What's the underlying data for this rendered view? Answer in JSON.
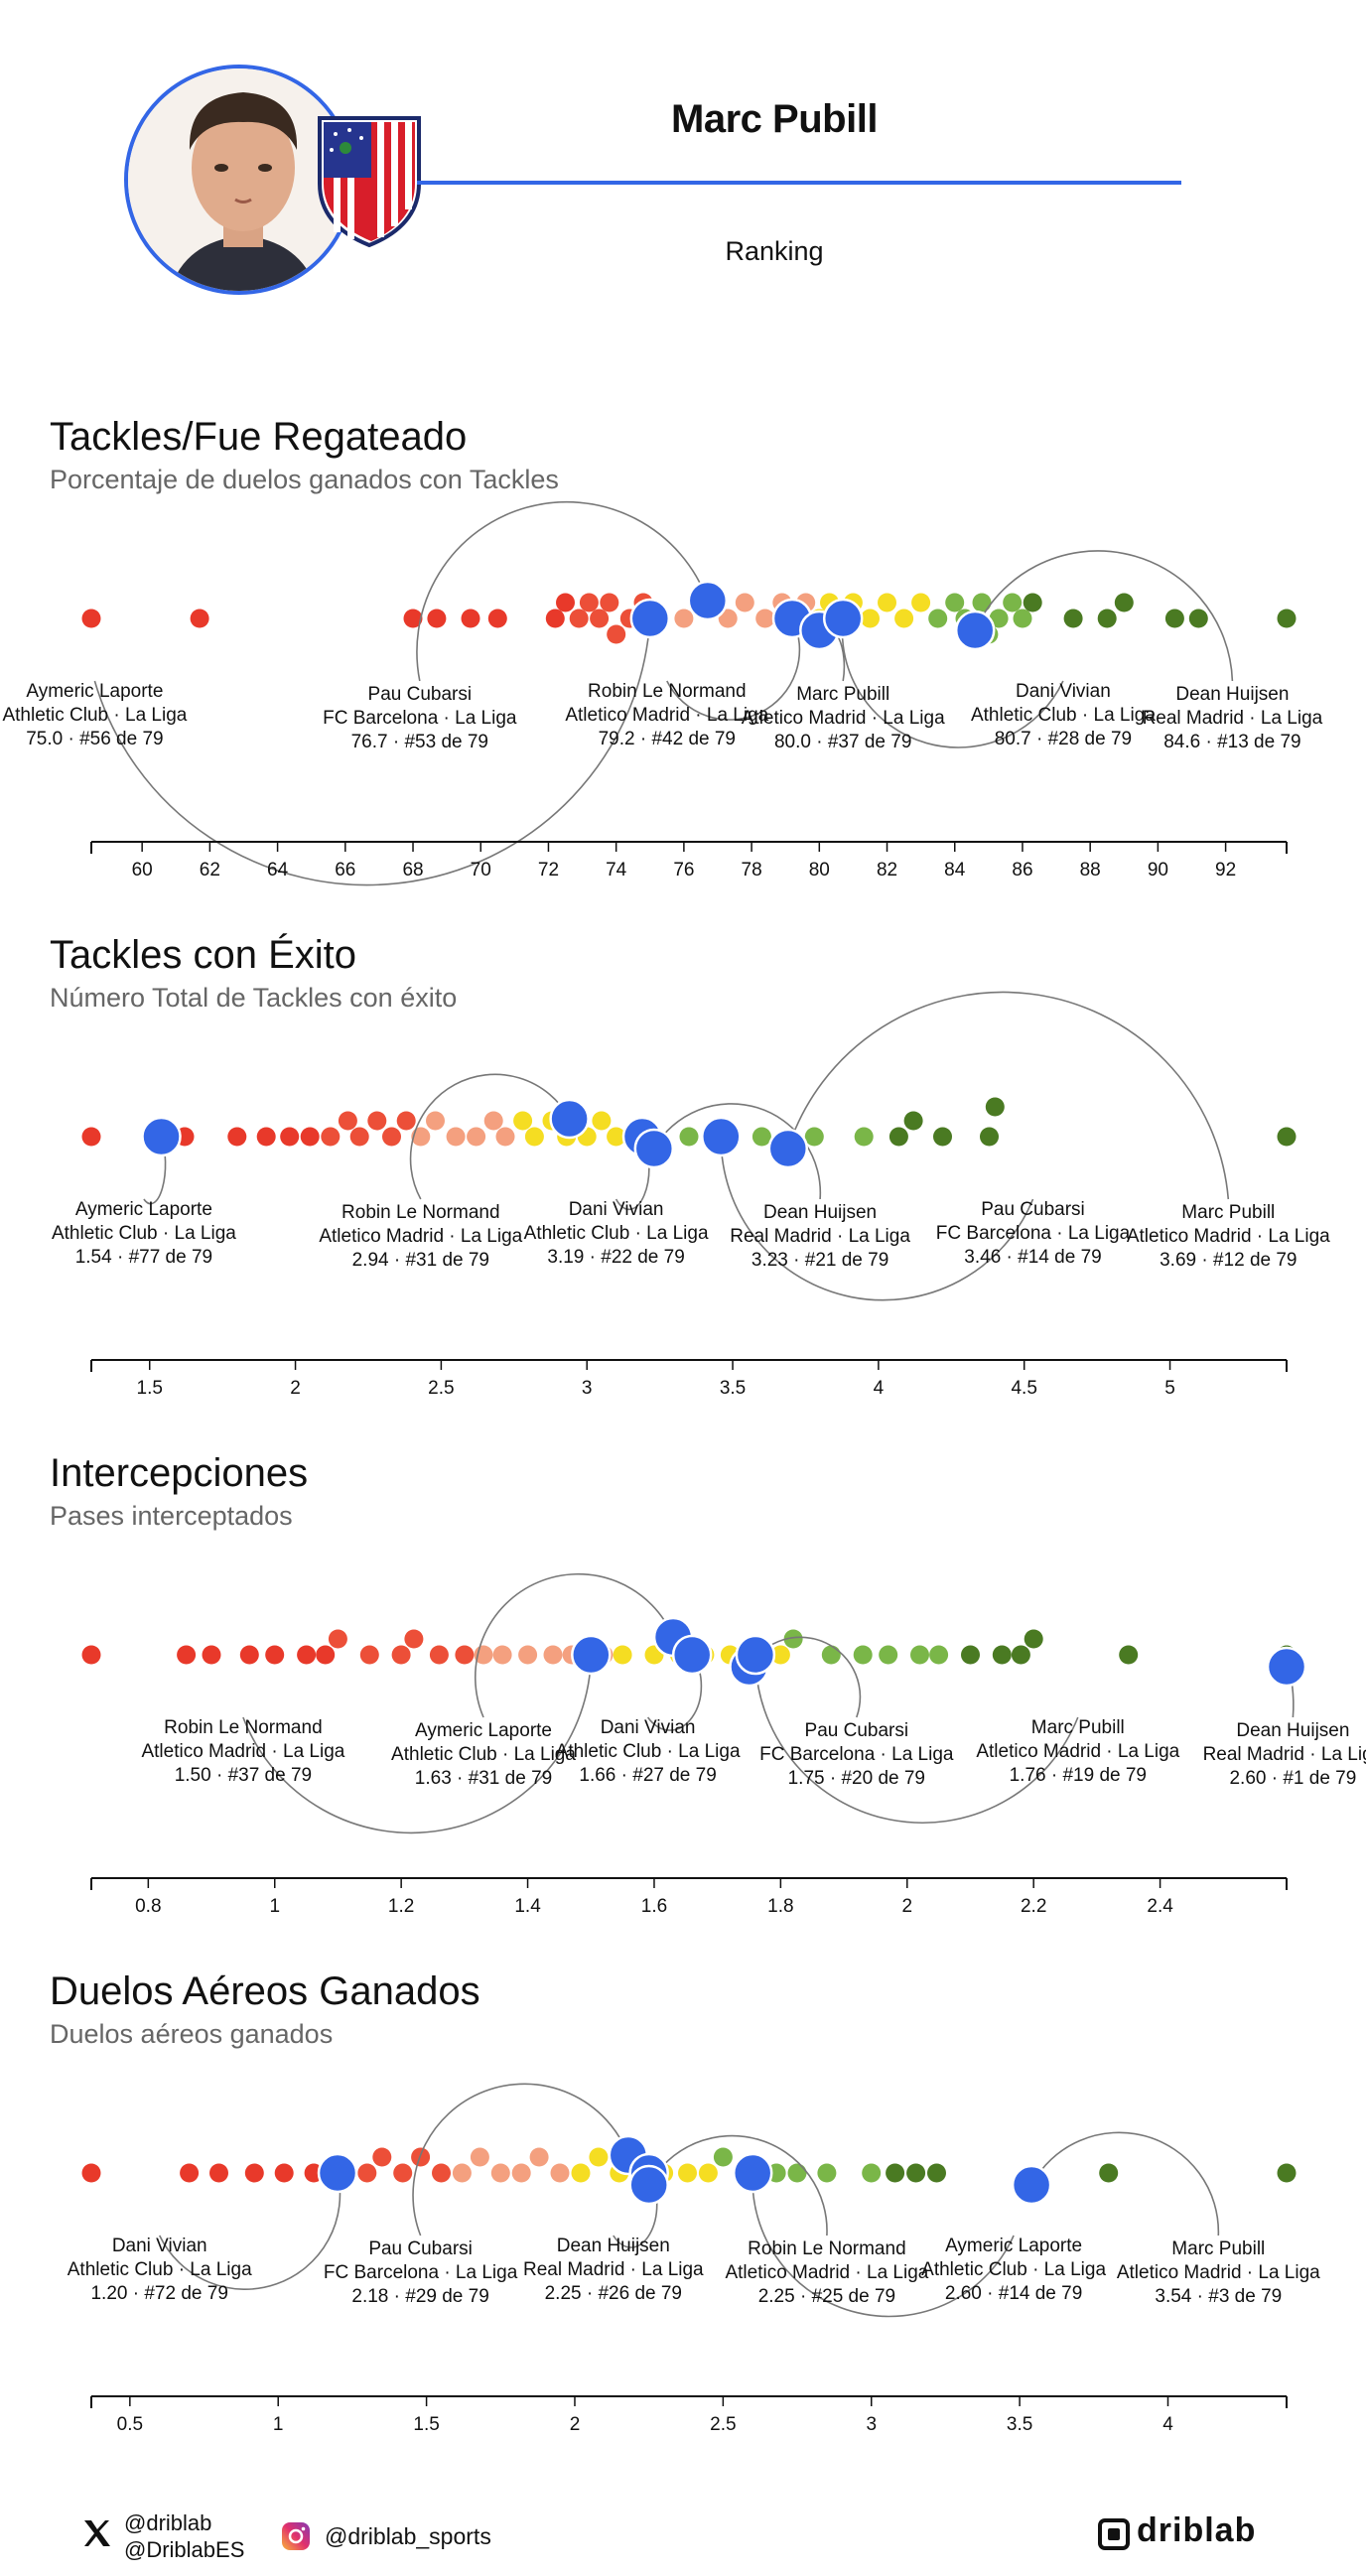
{
  "header": {
    "player_name": "Marc Pubill",
    "subtitle": "Ranking",
    "accent": "#3366e6"
  },
  "colors": {
    "highlight": "#3366e6",
    "bins": [
      "#e8392a",
      "#ec4f38",
      "#f4a07f",
      "#f5dd22",
      "#7ab648",
      "#4a7a22"
    ],
    "line": "#777777"
  },
  "chart_data": [
    {
      "type": "scatter",
      "title": "Tackles/Fue Regateado",
      "subtitle": "Porcentaje de duelos ganados con Tackles",
      "xlim": [
        58.5,
        93.8
      ],
      "ticks": [
        60,
        62,
        64,
        66,
        68,
        70,
        72,
        74,
        76,
        78,
        80,
        82,
        84,
        86,
        88,
        90,
        92
      ],
      "tick_labels": [
        "60",
        "62",
        "64",
        "66",
        "68",
        "70",
        "72",
        "74",
        "76",
        "78",
        "80",
        "82",
        "84",
        "86",
        "88",
        "90",
        "92"
      ],
      "population": [
        58.5,
        61.7,
        68.0,
        68.7,
        69.7,
        70.5,
        72.2,
        72.5,
        72.9,
        73.2,
        73.5,
        73.8,
        74.0,
        74.4,
        74.8,
        75.3,
        76.0,
        76.5,
        77.3,
        77.8,
        78.4,
        78.9,
        79.3,
        79.6,
        80.0,
        80.3,
        80.7,
        81.0,
        81.5,
        82.0,
        82.5,
        83.0,
        83.5,
        84.0,
        84.3,
        84.8,
        85.0,
        85.3,
        85.7,
        86.0,
        86.3,
        87.5,
        88.5,
        89.0,
        90.5,
        91.2,
        93.8
      ],
      "players": [
        {
          "name": "Aymeric Laporte",
          "team": "Athletic Club · La Liga",
          "value": 75.0,
          "display": "75.0",
          "rank": "#56 de 79",
          "label_x": 58.6
        },
        {
          "name": "Pau Cubarsi",
          "team": "FC Barcelona · La Liga",
          "value": 76.7,
          "display": "76.7",
          "rank": "#53 de 79",
          "label_x": 68.2
        },
        {
          "name": "Robin Le Normand",
          "team": "Atletico Madrid · La Liga",
          "value": 79.2,
          "display": "79.2",
          "rank": "#42 de 79",
          "label_x": 75.5
        },
        {
          "name": "Marc Pubill",
          "team": "Atletico Madrid · La Liga",
          "value": 80.0,
          "display": "80.0",
          "rank": "#37 de 79",
          "label_x": 80.7
        },
        {
          "name": "Dani Vivian",
          "team": "Athletic Club · La Liga",
          "value": 80.7,
          "display": "80.7",
          "rank": "#28 de 79",
          "label_x": 87.2
        },
        {
          "name": "Dean Huijsen",
          "team": "Real Madrid · La Liga",
          "value": 84.6,
          "display": "84.6",
          "rank": "#13 de 79",
          "label_x": 92.2
        }
      ]
    },
    {
      "type": "scatter",
      "title": "Tackles con Éxito",
      "subtitle": "Número Total de Tackles con éxito",
      "xlim": [
        1.3,
        5.4
      ],
      "ticks": [
        1.5,
        2,
        2.5,
        3,
        3.5,
        4,
        4.5,
        5
      ],
      "tick_labels": [
        "1.5",
        "2",
        "2.5",
        "3",
        "3.5",
        "4",
        "4.5",
        "5"
      ],
      "population": [
        1.3,
        1.55,
        1.62,
        1.8,
        1.9,
        1.98,
        2.05,
        2.12,
        2.18,
        2.22,
        2.28,
        2.33,
        2.38,
        2.43,
        2.48,
        2.55,
        2.62,
        2.68,
        2.72,
        2.78,
        2.82,
        2.88,
        2.93,
        3.0,
        3.05,
        3.1,
        3.2,
        3.35,
        3.45,
        3.6,
        3.78,
        3.95,
        4.07,
        4.12,
        4.22,
        4.38,
        4.4,
        5.4
      ],
      "players": [
        {
          "name": "Aymeric Laporte",
          "team": "Athletic Club · La Liga",
          "value": 1.54,
          "display": "1.54",
          "rank": "#77 de 79",
          "label_x": 1.48
        },
        {
          "name": "Robin Le Normand",
          "team": "Atletico Madrid · La Liga",
          "value": 2.94,
          "display": "2.94",
          "rank": "#31 de 79",
          "label_x": 2.43
        },
        {
          "name": "Dani Vivian",
          "team": "Athletic Club · La Liga",
          "value": 3.19,
          "display": "3.19",
          "rank": "#22 de 79",
          "label_x": 3.1
        },
        {
          "name": "Dean Huijsen",
          "team": "Real Madrid · La Liga",
          "value": 3.23,
          "display": "3.23",
          "rank": "#21 de 79",
          "label_x": 3.8
        },
        {
          "name": "Pau Cubarsi",
          "team": "FC Barcelona · La Liga",
          "value": 3.46,
          "display": "3.46",
          "rank": "#14 de 79",
          "label_x": 4.53
        },
        {
          "name": "Marc Pubill",
          "team": "Atletico Madrid · La Liga",
          "value": 3.69,
          "display": "3.69",
          "rank": "#12 de 79",
          "label_x": 5.2
        }
      ]
    },
    {
      "type": "scatter",
      "title": "Intercepciones",
      "subtitle": "Pases interceptados",
      "xlim": [
        0.71,
        2.6
      ],
      "ticks": [
        0.8,
        1,
        1.2,
        1.4,
        1.6,
        1.8,
        2,
        2.2,
        2.4
      ],
      "tick_labels": [
        "0.8",
        "1",
        "1.2",
        "1.4",
        "1.6",
        "1.8",
        "2",
        "2.2",
        "2.4"
      ],
      "population": [
        0.71,
        0.86,
        0.9,
        0.96,
        1.0,
        1.05,
        1.08,
        1.1,
        1.15,
        1.2,
        1.22,
        1.26,
        1.3,
        1.33,
        1.36,
        1.4,
        1.44,
        1.47,
        1.52,
        1.55,
        1.6,
        1.64,
        1.68,
        1.72,
        1.76,
        1.8,
        1.82,
        1.88,
        1.93,
        1.97,
        2.02,
        2.05,
        2.1,
        2.15,
        2.18,
        2.2,
        2.35,
        2.6
      ],
      "players": [
        {
          "name": "Robin Le Normand",
          "team": "Atletico Madrid · La Liga",
          "value": 1.5,
          "display": "1.50",
          "rank": "#37 de 79",
          "label_x": 0.95
        },
        {
          "name": "Aymeric Laporte",
          "team": "Athletic Club · La Liga",
          "value": 1.63,
          "display": "1.63",
          "rank": "#31 de 79",
          "label_x": 1.33
        },
        {
          "name": "Dani Vivian",
          "team": "Athletic Club · La Liga",
          "value": 1.66,
          "display": "1.66",
          "rank": "#27 de 79",
          "label_x": 1.59
        },
        {
          "name": "Pau Cubarsi",
          "team": "FC Barcelona · La Liga",
          "value": 1.75,
          "display": "1.75",
          "rank": "#20 de 79",
          "label_x": 1.92
        },
        {
          "name": "Marc Pubill",
          "team": "Atletico Madrid · La Liga",
          "value": 1.76,
          "display": "1.76",
          "rank": "#19 de 79",
          "label_x": 2.27
        },
        {
          "name": "Dean Huijsen",
          "team": "Real Madrid · La Liga",
          "value": 2.6,
          "display": "2.60",
          "rank": "#1 de 79",
          "label_x": 2.61
        }
      ]
    },
    {
      "type": "scatter",
      "title": "Duelos Aéreos Ganados",
      "subtitle": "Duelos aéreos ganados",
      "xlim": [
        0.37,
        4.4
      ],
      "ticks": [
        0.5,
        1,
        1.5,
        2,
        2.5,
        3,
        3.5,
        4
      ],
      "tick_labels": [
        "0.5",
        "1",
        "1.5",
        "2",
        "2.5",
        "3",
        "3.5",
        "4"
      ],
      "population": [
        0.37,
        0.7,
        0.8,
        0.92,
        1.02,
        1.12,
        1.23,
        1.3,
        1.35,
        1.42,
        1.48,
        1.55,
        1.62,
        1.68,
        1.75,
        1.82,
        1.88,
        1.95,
        2.02,
        2.08,
        2.15,
        2.3,
        2.38,
        2.45,
        2.5,
        2.58,
        2.68,
        2.75,
        2.85,
        3.0,
        3.08,
        3.15,
        3.22,
        3.8,
        4.4
      ],
      "players": [
        {
          "name": "Dani Vivian",
          "team": "Athletic Club · La Liga",
          "value": 1.2,
          "display": "1.20",
          "rank": "#72 de 79",
          "label_x": 0.6
        },
        {
          "name": "Pau Cubarsi",
          "team": "FC Barcelona · La Liga",
          "value": 2.18,
          "display": "2.18",
          "rank": "#29 de 79",
          "label_x": 1.48
        },
        {
          "name": "Dean Huijsen",
          "team": "Real Madrid · La Liga",
          "value": 2.25,
          "display": "2.25",
          "rank": "#26 de 79",
          "label_x": 2.13
        },
        {
          "name": "Robin Le Normand",
          "team": "Atletico Madrid · La Liga",
          "value": 2.25,
          "display": "2.25",
          "rank": "#25 de 79",
          "label_x": 2.85
        },
        {
          "name": "Aymeric Laporte",
          "team": "Athletic Club · La Liga",
          "value": 2.6,
          "display": "2.60",
          "rank": "#14 de 79",
          "label_x": 3.48
        },
        {
          "name": "Marc Pubill",
          "team": "Atletico Madrid · La Liga",
          "value": 3.54,
          "display": "3.54",
          "rank": "#3 de 79",
          "label_x": 4.17
        }
      ]
    }
  ],
  "footer": {
    "x_handles": [
      "@driblab",
      "@DriblabES"
    ],
    "instagram_handle": "@driblab_sports",
    "logo_text": "driblab"
  }
}
